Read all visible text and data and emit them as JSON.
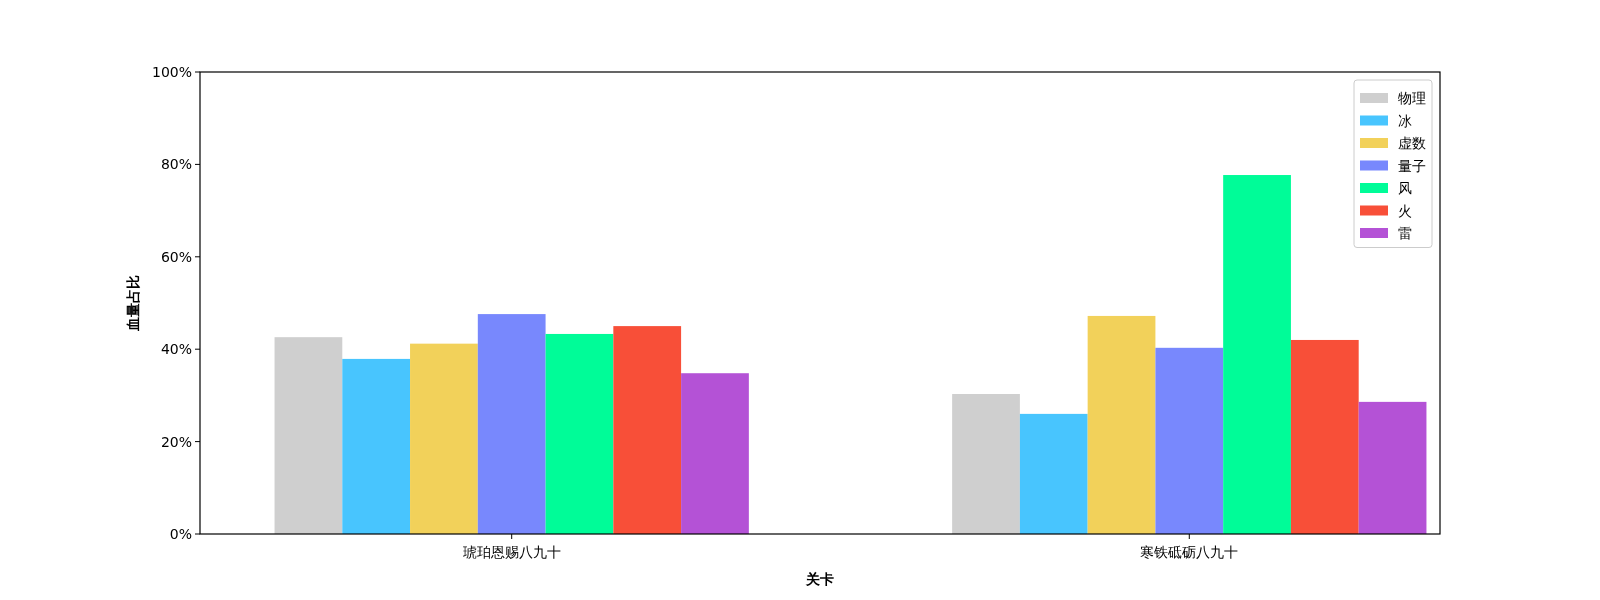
{
  "chart_data": {
    "type": "bar",
    "xlabel": "关卡",
    "ylabel": "血量占比",
    "categories": [
      "琥珀恩赐八九十",
      "寒铁砥砺八九十"
    ],
    "series": [
      {
        "name": "物理",
        "color": "#cfcfcf",
        "values": [
          42.6,
          30.3
        ]
      },
      {
        "name": "冰",
        "color": "#48c5fe",
        "values": [
          37.9,
          26.0
        ]
      },
      {
        "name": "虚数",
        "color": "#f2d15a",
        "values": [
          41.2,
          47.2
        ]
      },
      {
        "name": "量子",
        "color": "#7888fd",
        "values": [
          47.6,
          40.3
        ]
      },
      {
        "name": "风",
        "color": "#00fc98",
        "values": [
          43.3,
          77.7
        ]
      },
      {
        "name": "火",
        "color": "#f84f38",
        "values": [
          45.0,
          42.0
        ]
      },
      {
        "name": "雷",
        "color": "#b452d6",
        "values": [
          34.8,
          28.6
        ]
      }
    ],
    "ylim": [
      0,
      100
    ],
    "yticks": [
      {
        "value": 0,
        "label": "0%"
      },
      {
        "value": 20,
        "label": "20%"
      },
      {
        "value": 40,
        "label": "40%"
      },
      {
        "value": 60,
        "label": "60%"
      },
      {
        "value": 80,
        "label": "80%"
      },
      {
        "value": 100,
        "label": "100%"
      }
    ],
    "legend": "top right"
  }
}
